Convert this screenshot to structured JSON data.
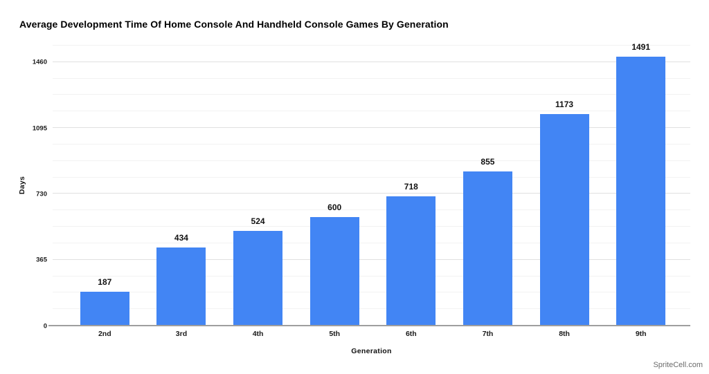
{
  "watermark": "SpriteCell.com",
  "chart_data": {
    "type": "bar",
    "title": "Average Development Time Of Home Console And Handheld Console Games By Generation",
    "categories": [
      "2nd",
      "3rd",
      "4th",
      "5th",
      "6th",
      "7th",
      "8th",
      "9th"
    ],
    "values": [
      187,
      434,
      524,
      600,
      718,
      855,
      1173,
      1491
    ],
    "xlabel": "Generation",
    "ylabel": "Days",
    "ylim": [
      0,
      1551.25
    ],
    "yticks": [
      0,
      365,
      730,
      1095,
      1460
    ],
    "minor_grid_step": 91.25,
    "major_grid_step": 365,
    "grid": true,
    "legend": "none",
    "bar_labels_shown": true
  },
  "colors": {
    "bar": "#4285f4",
    "major_grid": "#e0e0e0",
    "minor_grid": "#f2f2f2",
    "baseline": "#9e9e9e",
    "title_text": "#000000",
    "tick_text": "#1a1a1a",
    "value_text": "#111111",
    "axis_title_text": "#111111",
    "watermark_text": "#6b6b6b"
  }
}
